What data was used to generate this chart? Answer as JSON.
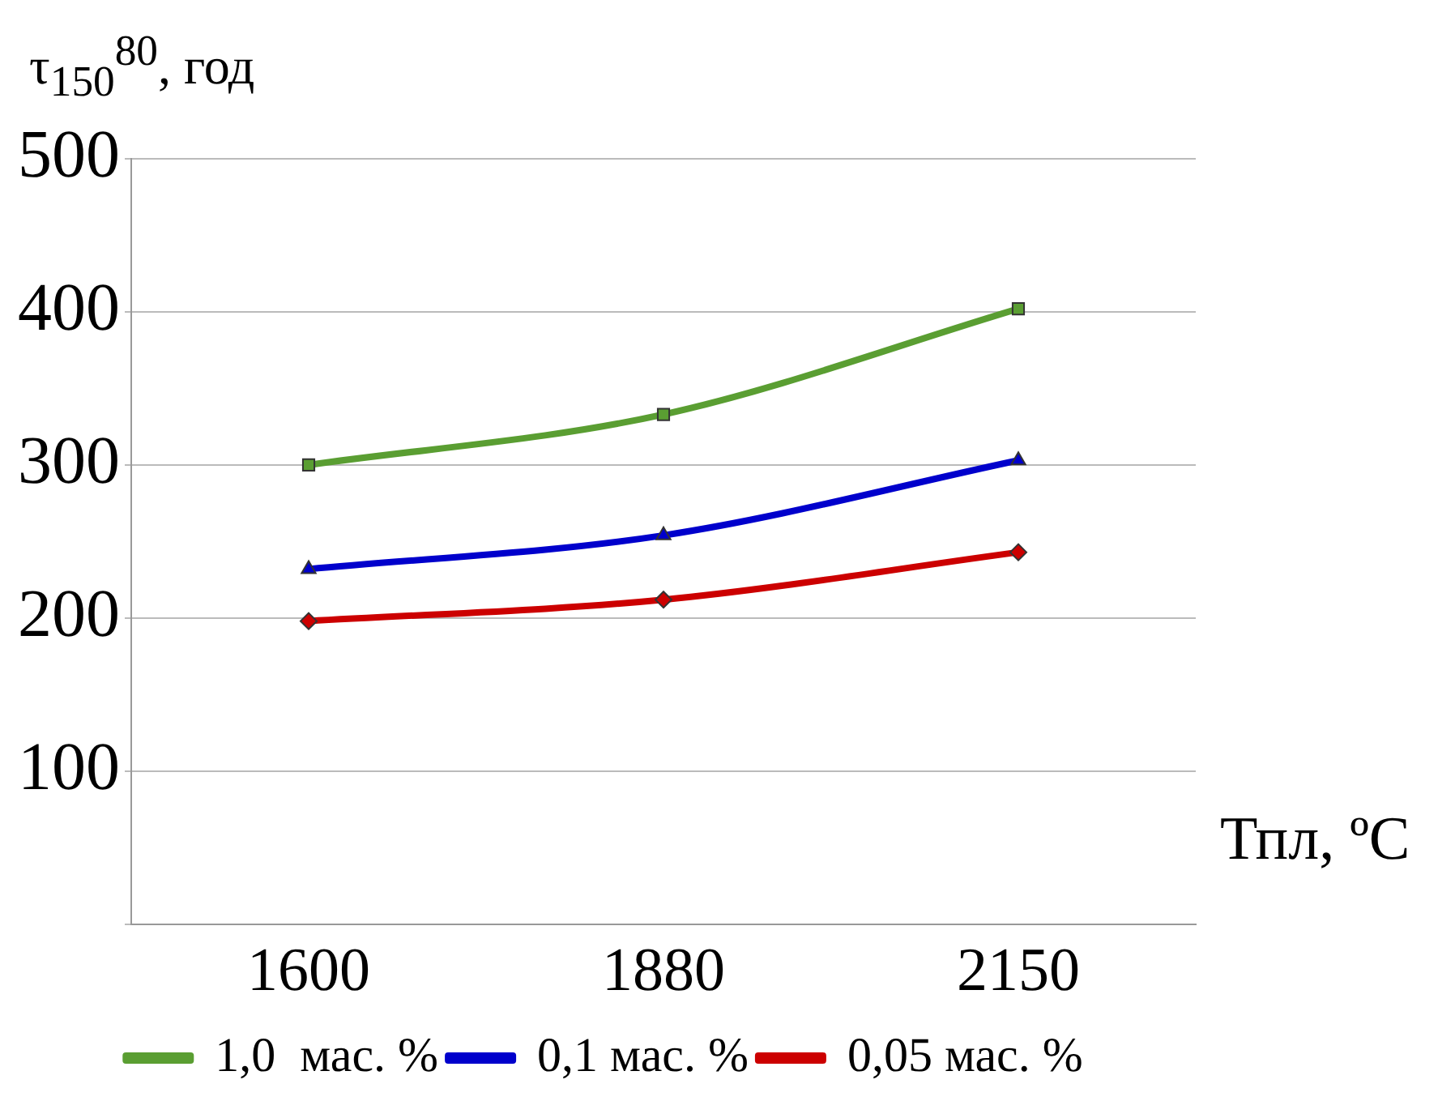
{
  "chart_data": {
    "type": "line",
    "ylabel": "τ$_{150}$$^{80}$, год",
    "xlabel": "Тпл, ºС",
    "categories": [
      "1600",
      "1880",
      "2150"
    ],
    "series": [
      {
        "name": "1,0  мас. %",
        "color": "#5a9e32",
        "values": [
          300,
          333,
          402
        ],
        "marker": "square"
      },
      {
        "name": "0,1 мас. %",
        "color": "#0000cc",
        "values": [
          232,
          254,
          303
        ],
        "marker": "triangle"
      },
      {
        "name": "0,05 мас. %",
        "color": "#cc0000",
        "values": [
          198,
          212,
          243
        ],
        "marker": "diamond"
      }
    ],
    "ylim": [
      0,
      500
    ],
    "yticks": [
      {
        "value": 0,
        "label": null
      },
      100,
      200,
      300,
      400,
      500
    ],
    "grid": "y",
    "legend": "bottom",
    "line_style": "solid"
  }
}
